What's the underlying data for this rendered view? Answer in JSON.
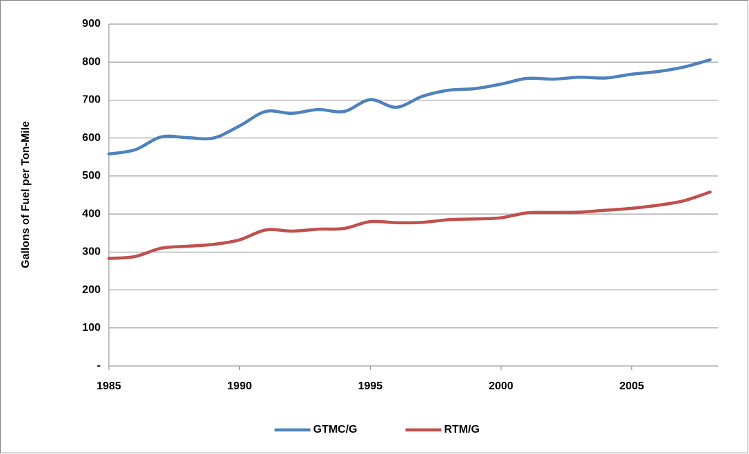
{
  "chart_data": {
    "type": "line",
    "y_label": "Gallons of Fuel per Ton-Mile",
    "x": [
      1985,
      1986,
      1987,
      1988,
      1989,
      1990,
      1991,
      1992,
      1993,
      1994,
      1995,
      1996,
      1997,
      1998,
      1999,
      2000,
      2001,
      2002,
      2003,
      2004,
      2005,
      2006,
      2007,
      2008
    ],
    "series": [
      {
        "name": "GTMC/G",
        "color": "#4f81bd",
        "values": [
          558,
          569,
          603,
          601,
          600,
          632,
          670,
          665,
          675,
          670,
          701,
          681,
          710,
          726,
          730,
          742,
          757,
          755,
          760,
          758,
          768,
          775,
          787,
          806
        ]
      },
      {
        "name": "RTM/G",
        "color": "#c0504d",
        "values": [
          283,
          288,
          310,
          315,
          320,
          332,
          358,
          355,
          360,
          362,
          380,
          377,
          378,
          385,
          387,
          390,
          403,
          404,
          405,
          410,
          415,
          423,
          435,
          458
        ]
      }
    ],
    "xlim": [
      1985,
      2008.3
    ],
    "xticks": [
      1985,
      1990,
      1995,
      2000,
      2005
    ],
    "ylim": [
      0,
      900
    ],
    "yticks": [
      {
        "value": 0,
        "label": "-"
      },
      100,
      200,
      300,
      400,
      500,
      600,
      700,
      800,
      900
    ],
    "grid": true,
    "smooth": true,
    "legend": "bottom"
  }
}
